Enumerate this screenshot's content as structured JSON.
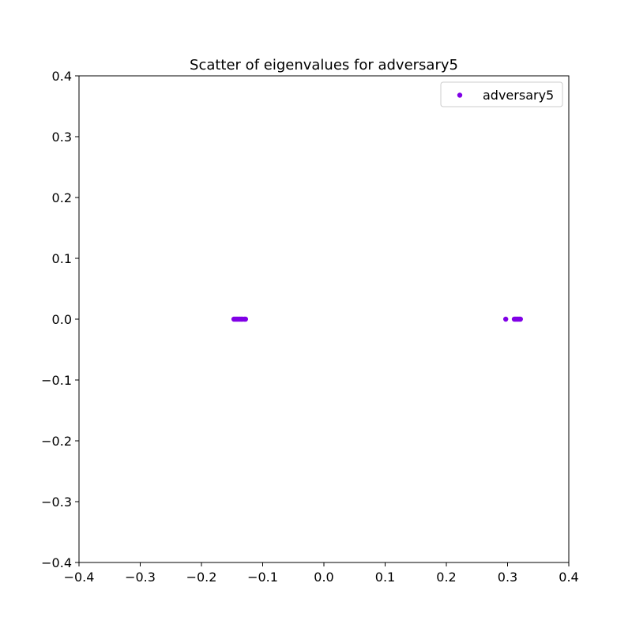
{
  "chart_data": {
    "type": "scatter",
    "title": "Scatter of eigenvalues for adversary5",
    "xlabel": "",
    "ylabel": "",
    "xlim": [
      -0.4,
      0.4
    ],
    "ylim": [
      -0.4,
      0.4
    ],
    "x_ticks": [
      -0.4,
      -0.3,
      -0.2,
      -0.1,
      0.0,
      0.1,
      0.2,
      0.3,
      0.4
    ],
    "y_ticks": [
      -0.4,
      -0.3,
      -0.2,
      -0.1,
      0.0,
      0.1,
      0.2,
      0.3,
      0.4
    ],
    "x_tick_labels": [
      "−0.4",
      "−0.3",
      "−0.2",
      "−0.1",
      "0.0",
      "0.1",
      "0.2",
      "0.3",
      "0.4"
    ],
    "y_tick_labels": [
      "−0.4",
      "−0.3",
      "−0.2",
      "−0.1",
      "0.0",
      "0.1",
      "0.2",
      "0.3",
      "0.4"
    ],
    "grid": false,
    "legend": {
      "position": "top-right"
    },
    "series": [
      {
        "name": "adversary5",
        "color": "#8000e6",
        "points": [
          {
            "x": -0.147,
            "y": 0.0
          },
          {
            "x": -0.145,
            "y": 0.0
          },
          {
            "x": -0.143,
            "y": 0.0
          },
          {
            "x": -0.141,
            "y": 0.0
          },
          {
            "x": -0.139,
            "y": 0.0
          },
          {
            "x": -0.137,
            "y": 0.0
          },
          {
            "x": -0.135,
            "y": 0.0
          },
          {
            "x": -0.133,
            "y": 0.0
          },
          {
            "x": -0.13,
            "y": 0.0
          },
          {
            "x": -0.128,
            "y": 0.0
          },
          {
            "x": 0.297,
            "y": 0.0
          },
          {
            "x": 0.311,
            "y": 0.0
          },
          {
            "x": 0.313,
            "y": 0.0
          },
          {
            "x": 0.315,
            "y": 0.0
          },
          {
            "x": 0.317,
            "y": 0.0
          },
          {
            "x": 0.319,
            "y": 0.0
          },
          {
            "x": 0.321,
            "y": 0.0
          }
        ]
      }
    ]
  }
}
